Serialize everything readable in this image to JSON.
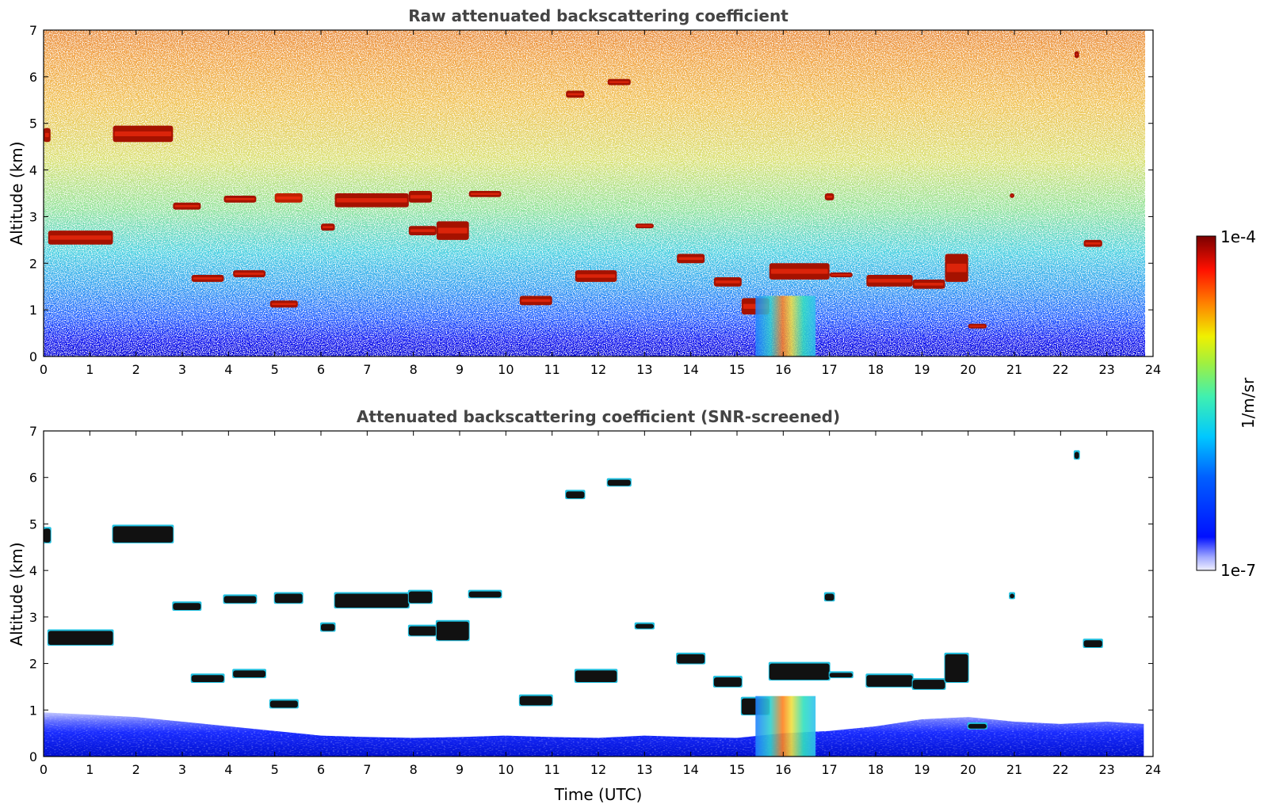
{
  "chart_data": [
    {
      "type": "heatmap",
      "title": "Raw attenuated backscattering coefficient",
      "xlabel": "",
      "ylabel": "Altitude (km)",
      "xlim": [
        0,
        24
      ],
      "ylim": [
        0,
        7
      ],
      "x_ticks": [
        "0",
        "1",
        "2",
        "3",
        "4",
        "5",
        "6",
        "7",
        "8",
        "9",
        "10",
        "11",
        "12",
        "13",
        "14",
        "15",
        "16",
        "17",
        "18",
        "19",
        "20",
        "21",
        "22",
        "23",
        "24"
      ],
      "y_ticks": [
        "0",
        "1",
        "2",
        "3",
        "4",
        "5",
        "6",
        "7"
      ],
      "colorscale": "jet, logarithmic",
      "background": "noisy field: deep blue below 0.5 km, blue/cyan up to about 2 km, green/yellow/orange aloft with red speckle near 6-7 km",
      "cloud_layers": [
        {
          "t_start": 0.0,
          "t_end": 0.15,
          "alt_bottom": 4.6,
          "alt_top": 4.9,
          "level": "high"
        },
        {
          "t_start": 0.1,
          "t_end": 1.5,
          "alt_bottom": 2.4,
          "alt_top": 2.7,
          "level": "high"
        },
        {
          "t_start": 1.5,
          "t_end": 2.8,
          "alt_bottom": 4.6,
          "alt_top": 4.95,
          "level": "high"
        },
        {
          "t_start": 2.8,
          "t_end": 3.4,
          "alt_bottom": 3.15,
          "alt_top": 3.3,
          "level": "high"
        },
        {
          "t_start": 3.2,
          "t_end": 3.9,
          "alt_bottom": 1.6,
          "alt_top": 1.75,
          "level": "high"
        },
        {
          "t_start": 3.9,
          "t_end": 4.6,
          "alt_bottom": 3.3,
          "alt_top": 3.45,
          "level": "high"
        },
        {
          "t_start": 4.1,
          "t_end": 4.8,
          "alt_bottom": 1.7,
          "alt_top": 1.85,
          "level": "high"
        },
        {
          "t_start": 4.9,
          "t_end": 5.5,
          "alt_bottom": 1.05,
          "alt_top": 1.2,
          "level": "high"
        },
        {
          "t_start": 5.0,
          "t_end": 5.6,
          "alt_bottom": 3.3,
          "alt_top": 3.5,
          "level": "medium"
        },
        {
          "t_start": 6.0,
          "t_end": 6.3,
          "alt_bottom": 2.7,
          "alt_top": 2.85,
          "level": "high"
        },
        {
          "t_start": 6.3,
          "t_end": 7.9,
          "alt_bottom": 3.2,
          "alt_top": 3.5,
          "level": "high"
        },
        {
          "t_start": 7.9,
          "t_end": 8.4,
          "alt_bottom": 3.3,
          "alt_top": 3.55,
          "level": "high"
        },
        {
          "t_start": 7.9,
          "t_end": 8.5,
          "alt_bottom": 2.6,
          "alt_top": 2.8,
          "level": "high"
        },
        {
          "t_start": 8.5,
          "t_end": 9.2,
          "alt_bottom": 2.5,
          "alt_top": 2.9,
          "level": "high"
        },
        {
          "t_start": 9.2,
          "t_end": 9.9,
          "alt_bottom": 3.42,
          "alt_top": 3.55,
          "level": "high"
        },
        {
          "t_start": 10.3,
          "t_end": 11.0,
          "alt_bottom": 1.1,
          "alt_top": 1.3,
          "level": "high"
        },
        {
          "t_start": 11.3,
          "t_end": 11.7,
          "alt_bottom": 5.55,
          "alt_top": 5.7,
          "level": "high"
        },
        {
          "t_start": 11.5,
          "t_end": 12.4,
          "alt_bottom": 1.6,
          "alt_top": 1.85,
          "level": "high"
        },
        {
          "t_start": 12.2,
          "t_end": 12.7,
          "alt_bottom": 5.82,
          "alt_top": 5.95,
          "level": "high"
        },
        {
          "t_start": 12.8,
          "t_end": 13.2,
          "alt_bottom": 2.75,
          "alt_top": 2.85,
          "level": "high"
        },
        {
          "t_start": 13.7,
          "t_end": 14.3,
          "alt_bottom": 2.0,
          "alt_top": 2.2,
          "level": "high"
        },
        {
          "t_start": 14.5,
          "t_end": 15.1,
          "alt_bottom": 1.5,
          "alt_top": 1.7,
          "level": "high"
        },
        {
          "t_start": 15.1,
          "t_end": 15.7,
          "alt_bottom": 0.9,
          "alt_top": 1.25,
          "level": "high"
        },
        {
          "t_start": 15.7,
          "t_end": 17.0,
          "alt_bottom": 1.65,
          "alt_top": 2.0,
          "level": "high"
        },
        {
          "t_start": 16.9,
          "t_end": 17.1,
          "alt_bottom": 3.35,
          "alt_top": 3.5,
          "level": "high"
        },
        {
          "t_start": 17.0,
          "t_end": 17.5,
          "alt_bottom": 1.7,
          "alt_top": 1.8,
          "level": "high"
        },
        {
          "t_start": 17.8,
          "t_end": 18.8,
          "alt_bottom": 1.5,
          "alt_top": 1.75,
          "level": "high"
        },
        {
          "t_start": 18.8,
          "t_end": 19.5,
          "alt_bottom": 1.45,
          "alt_top": 1.65,
          "level": "high"
        },
        {
          "t_start": 19.5,
          "t_end": 20.0,
          "alt_bottom": 1.6,
          "alt_top": 2.2,
          "level": "high"
        },
        {
          "t_start": 20.0,
          "t_end": 20.4,
          "alt_bottom": 0.6,
          "alt_top": 0.7,
          "level": "high"
        },
        {
          "t_start": 20.9,
          "t_end": 21.0,
          "alt_bottom": 3.4,
          "alt_top": 3.5,
          "level": "high"
        },
        {
          "t_start": 22.3,
          "t_end": 22.4,
          "alt_bottom": 6.4,
          "alt_top": 6.55,
          "level": "high"
        },
        {
          "t_start": 22.5,
          "t_end": 22.9,
          "alt_bottom": 2.35,
          "alt_top": 2.5,
          "level": "high"
        },
        {
          "t_start": 15.4,
          "t_end": 16.7,
          "alt_bottom": 0.0,
          "alt_top": 1.3,
          "level": "precip"
        }
      ]
    },
    {
      "type": "heatmap",
      "title": "Attenuated backscattering coefficient (SNR-screened)",
      "xlabel": "Time (UTC)",
      "ylabel": "Altitude (km)",
      "xlim": [
        0,
        24
      ],
      "ylim": [
        0,
        7
      ],
      "x_ticks": [
        "0",
        "1",
        "2",
        "3",
        "4",
        "5",
        "6",
        "7",
        "8",
        "9",
        "10",
        "11",
        "12",
        "13",
        "14",
        "15",
        "16",
        "17",
        "18",
        "19",
        "20",
        "21",
        "22",
        "23",
        "24"
      ],
      "y_ticks": [
        "0",
        "1",
        "2",
        "3",
        "4",
        "5",
        "6",
        "7"
      ],
      "colorscale": "jet, logarithmic",
      "background": "white (screened out) except a blue boundary layer below about 0.6-1 km and the cloud layers",
      "cloud_layers": "same layers as the raw panel, rendered black with colored edges"
    }
  ],
  "colorbar": {
    "max_label": "1e-4",
    "min_label": "1e-7",
    "unit_label": "1/m/sr"
  },
  "colors": {
    "title_gray": "#444444",
    "white": "#ffffff"
  }
}
